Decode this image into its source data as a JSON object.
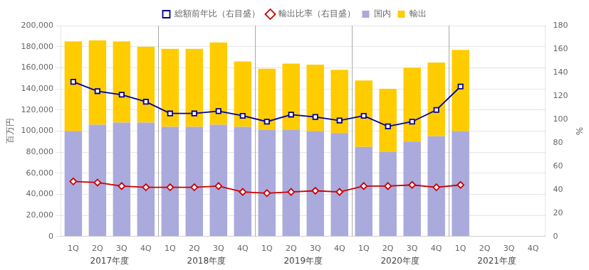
{
  "chart_data": {
    "type": "bar",
    "stacked": true,
    "grid": true,
    "legend": "top",
    "categories": [
      "1Q",
      "2Q",
      "3Q",
      "4Q",
      "1Q",
      "2Q",
      "3Q",
      "4Q",
      "1Q",
      "2Q",
      "3Q",
      "4Q",
      "1Q",
      "2Q",
      "3Q",
      "4Q",
      "1Q",
      "2Q",
      "3Q",
      "4Q"
    ],
    "fiscal_years": [
      "2017年度",
      "2018年度",
      "2019年度",
      "2020年度",
      "2021年度"
    ],
    "series": [
      {
        "name": "国内",
        "type": "bar",
        "color": "#aaaadd",
        "values": [
          100000,
          106000,
          108000,
          108000,
          104000,
          104000,
          106000,
          104000,
          101000,
          101000,
          100000,
          98000,
          85000,
          80000,
          90000,
          95000,
          100000,
          null,
          null,
          null
        ]
      },
      {
        "name": "輸出",
        "type": "bar",
        "color": "#ffcc00",
        "values": [
          85000,
          80000,
          77000,
          72000,
          74000,
          74000,
          78000,
          62000,
          58000,
          63000,
          63000,
          60000,
          63000,
          60000,
          70000,
          70000,
          77000,
          null,
          null,
          null
        ]
      },
      {
        "name": "総額前年比（右目盛）",
        "type": "line",
        "axis": "y2",
        "color": "#000099",
        "marker": "square",
        "values": [
          132,
          124,
          121,
          115,
          105,
          105,
          107,
          103,
          98,
          104,
          102,
          99,
          103,
          94,
          98,
          108,
          128,
          null,
          null,
          null
        ]
      },
      {
        "name": "輸出比率（右目盛）",
        "type": "line",
        "axis": "y2",
        "color": "#cc0000",
        "marker": "diamond",
        "values": [
          47,
          46,
          43,
          42,
          42,
          42,
          43,
          38,
          37,
          38,
          39,
          38,
          43,
          43,
          44,
          42,
          44,
          null,
          null,
          null
        ]
      }
    ],
    "ylabel": "百万円",
    "y2label": "%",
    "ylim": [
      0,
      200000
    ],
    "yticks": [
      {
        "value": 0,
        "label": "0"
      },
      {
        "value": 20000,
        "label": "20,000"
      },
      {
        "value": 40000,
        "label": "40,000"
      },
      {
        "value": 60000,
        "label": "60,000"
      },
      {
        "value": 80000,
        "label": "80,000"
      },
      {
        "value": 100000,
        "label": "100,000"
      },
      {
        "value": 120000,
        "label": "120,000"
      },
      {
        "value": 140000,
        "label": "140,000"
      },
      {
        "value": 160000,
        "label": "160,000"
      },
      {
        "value": 180000,
        "label": "180,000"
      },
      {
        "value": 200000,
        "label": "200,000"
      }
    ],
    "y2lim": [
      0,
      180
    ],
    "y2ticks": [
      0,
      20,
      40,
      60,
      80,
      100,
      120,
      140,
      160,
      180
    ]
  }
}
